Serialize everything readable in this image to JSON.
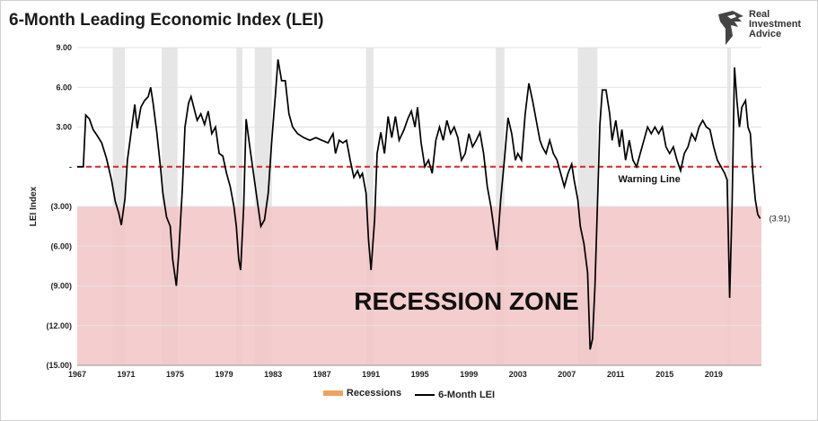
{
  "title": "6-Month Leading Economic Index (LEI)",
  "logo": {
    "line1": "Real",
    "line2": "Investment",
    "line3": "Advice"
  },
  "chart_data": {
    "type": "line",
    "ylabel": "LEI Index",
    "ylim": [
      -15,
      9
    ],
    "xlim": [
      1967,
      2022.9
    ],
    "y_ticks": [
      {
        "v": 9,
        "label": "9.00"
      },
      {
        "v": 6,
        "label": "6.00"
      },
      {
        "v": 3,
        "label": "3.00"
      },
      {
        "v": 0,
        "label": "-"
      },
      {
        "v": -3,
        "label": "(3.00)"
      },
      {
        "v": -6,
        "label": "(6.00)"
      },
      {
        "v": -9,
        "label": "(9.00)"
      },
      {
        "v": -12,
        "label": "(12.00)"
      },
      {
        "v": -15,
        "label": "(15.00)"
      }
    ],
    "x_ticks": [
      "1967",
      "1971",
      "1975",
      "1979",
      "1983",
      "1987",
      "1991",
      "1995",
      "1999",
      "2003",
      "2007",
      "2011",
      "2015",
      "2019"
    ],
    "grid": true,
    "recessions": [
      [
        1969.9,
        1970.9
      ],
      [
        1973.9,
        1975.2
      ],
      [
        1980.0,
        1980.5
      ],
      [
        1981.5,
        1982.9
      ],
      [
        1990.6,
        1991.2
      ],
      [
        2001.2,
        2001.9
      ],
      [
        2007.9,
        2009.5
      ],
      [
        2020.1,
        2020.4
      ]
    ],
    "warning_line": {
      "value": 0,
      "label": "Warning Line",
      "color": "#d62728"
    },
    "recession_zone": {
      "from": -3,
      "to": -15,
      "label": "RECESSION ZONE",
      "color": "#f2c4c6"
    },
    "series": [
      {
        "name": "6-Month LEI",
        "color": "#000000",
        "points": [
          [
            1967.0,
            0.0
          ],
          [
            1967.5,
            0.0
          ],
          [
            1967.7,
            3.9
          ],
          [
            1968.0,
            3.6
          ],
          [
            1968.3,
            2.8
          ],
          [
            1968.6,
            2.4
          ],
          [
            1969.0,
            1.8
          ],
          [
            1969.4,
            0.6
          ],
          [
            1969.8,
            -1.0
          ],
          [
            1970.1,
            -2.6
          ],
          [
            1970.4,
            -3.5
          ],
          [
            1970.6,
            -4.4
          ],
          [
            1970.9,
            -2.4
          ],
          [
            1971.1,
            0.5
          ],
          [
            1971.4,
            2.6
          ],
          [
            1971.7,
            4.7
          ],
          [
            1971.9,
            2.9
          ],
          [
            1972.2,
            4.5
          ],
          [
            1972.5,
            5.0
          ],
          [
            1972.8,
            5.3
          ],
          [
            1973.0,
            6.0
          ],
          [
            1973.2,
            4.8
          ],
          [
            1973.5,
            2.6
          ],
          [
            1973.8,
            0.0
          ],
          [
            1974.0,
            -2.0
          ],
          [
            1974.3,
            -3.8
          ],
          [
            1974.6,
            -4.5
          ],
          [
            1974.8,
            -7.0
          ],
          [
            1975.1,
            -9.0
          ],
          [
            1975.3,
            -6.5
          ],
          [
            1975.6,
            -1.5
          ],
          [
            1975.8,
            3.0
          ],
          [
            1976.1,
            4.8
          ],
          [
            1976.3,
            5.3
          ],
          [
            1976.6,
            4.2
          ],
          [
            1976.8,
            3.5
          ],
          [
            1977.1,
            4.0
          ],
          [
            1977.4,
            3.2
          ],
          [
            1977.7,
            4.2
          ],
          [
            1978.0,
            2.5
          ],
          [
            1978.3,
            3.0
          ],
          [
            1978.6,
            1.0
          ],
          [
            1978.9,
            0.8
          ],
          [
            1979.2,
            -0.5
          ],
          [
            1979.5,
            -1.5
          ],
          [
            1979.8,
            -3.0
          ],
          [
            1980.0,
            -4.5
          ],
          [
            1980.2,
            -7.0
          ],
          [
            1980.35,
            -7.8
          ],
          [
            1980.6,
            -3.0
          ],
          [
            1980.8,
            3.6
          ],
          [
            1981.1,
            1.5
          ],
          [
            1981.4,
            -0.5
          ],
          [
            1981.7,
            -2.5
          ],
          [
            1982.0,
            -4.5
          ],
          [
            1982.3,
            -4.0
          ],
          [
            1982.6,
            -2.0
          ],
          [
            1982.9,
            2.0
          ],
          [
            1983.2,
            5.5
          ],
          [
            1983.4,
            8.1
          ],
          [
            1983.7,
            6.5
          ],
          [
            1984.0,
            6.5
          ],
          [
            1984.3,
            4.0
          ],
          [
            1984.6,
            3.0
          ],
          [
            1985.0,
            2.5
          ],
          [
            1985.5,
            2.2
          ],
          [
            1986.0,
            2.0
          ],
          [
            1986.5,
            2.2
          ],
          [
            1987.0,
            2.0
          ],
          [
            1987.5,
            1.8
          ],
          [
            1987.9,
            2.5
          ],
          [
            1988.1,
            1.0
          ],
          [
            1988.4,
            2.0
          ],
          [
            1988.7,
            1.8
          ],
          [
            1989.0,
            2.0
          ],
          [
            1989.3,
            0.5
          ],
          [
            1989.6,
            -0.8
          ],
          [
            1989.9,
            -0.3
          ],
          [
            1990.1,
            -0.8
          ],
          [
            1990.3,
            -0.5
          ],
          [
            1990.6,
            -2.0
          ],
          [
            1990.8,
            -5.5
          ],
          [
            1991.0,
            -7.8
          ],
          [
            1991.3,
            -4.0
          ],
          [
            1991.5,
            1.0
          ],
          [
            1991.8,
            2.6
          ],
          [
            1992.1,
            1.0
          ],
          [
            1992.4,
            3.8
          ],
          [
            1992.7,
            2.2
          ],
          [
            1993.0,
            3.8
          ],
          [
            1993.3,
            2.0
          ],
          [
            1993.7,
            2.8
          ],
          [
            1994.0,
            3.6
          ],
          [
            1994.3,
            4.2
          ],
          [
            1994.6,
            3.0
          ],
          [
            1994.8,
            4.5
          ],
          [
            1995.1,
            1.8
          ],
          [
            1995.4,
            0.0
          ],
          [
            1995.7,
            0.5
          ],
          [
            1996.0,
            -0.5
          ],
          [
            1996.3,
            2.0
          ],
          [
            1996.6,
            3.0
          ],
          [
            1996.9,
            2.0
          ],
          [
            1997.2,
            3.5
          ],
          [
            1997.5,
            2.5
          ],
          [
            1997.8,
            3.0
          ],
          [
            1998.1,
            2.2
          ],
          [
            1998.4,
            0.5
          ],
          [
            1998.7,
            1.0
          ],
          [
            1999.0,
            2.5
          ],
          [
            1999.3,
            1.5
          ],
          [
            1999.6,
            2.0
          ],
          [
            1999.9,
            2.6
          ],
          [
            2000.2,
            1.0
          ],
          [
            2000.5,
            -1.5
          ],
          [
            2000.8,
            -3.0
          ],
          [
            2001.1,
            -5.0
          ],
          [
            2001.3,
            -6.3
          ],
          [
            2001.6,
            -2.5
          ],
          [
            2001.9,
            0.5
          ],
          [
            2002.2,
            3.7
          ],
          [
            2002.5,
            2.5
          ],
          [
            2002.8,
            0.5
          ],
          [
            2003.0,
            1.0
          ],
          [
            2003.3,
            0.5
          ],
          [
            2003.6,
            4.0
          ],
          [
            2003.9,
            6.3
          ],
          [
            2004.2,
            5.0
          ],
          [
            2004.5,
            3.5
          ],
          [
            2004.8,
            2.0
          ],
          [
            2005.0,
            1.5
          ],
          [
            2005.3,
            1.0
          ],
          [
            2005.6,
            2.0
          ],
          [
            2005.9,
            1.0
          ],
          [
            2006.2,
            0.5
          ],
          [
            2006.5,
            -0.5
          ],
          [
            2006.8,
            -1.5
          ],
          [
            2007.1,
            -0.5
          ],
          [
            2007.4,
            0.2
          ],
          [
            2007.6,
            -1.0
          ],
          [
            2007.9,
            -2.5
          ],
          [
            2008.1,
            -4.5
          ],
          [
            2008.4,
            -5.8
          ],
          [
            2008.7,
            -8.0
          ],
          [
            2008.9,
            -13.8
          ],
          [
            2009.1,
            -13.0
          ],
          [
            2009.3,
            -9.0
          ],
          [
            2009.5,
            -3.0
          ],
          [
            2009.7,
            3.2
          ],
          [
            2009.9,
            5.8
          ],
          [
            2010.2,
            5.8
          ],
          [
            2010.5,
            4.0
          ],
          [
            2010.7,
            2.0
          ],
          [
            2011.0,
            3.5
          ],
          [
            2011.3,
            1.5
          ],
          [
            2011.5,
            2.8
          ],
          [
            2011.8,
            0.5
          ],
          [
            2012.1,
            2.0
          ],
          [
            2012.4,
            0.5
          ],
          [
            2012.7,
            0.0
          ],
          [
            2013.0,
            1.0
          ],
          [
            2013.3,
            2.0
          ],
          [
            2013.6,
            3.0
          ],
          [
            2013.9,
            2.5
          ],
          [
            2014.2,
            3.0
          ],
          [
            2014.5,
            2.5
          ],
          [
            2014.8,
            3.0
          ],
          [
            2015.1,
            1.5
          ],
          [
            2015.4,
            1.0
          ],
          [
            2015.7,
            1.5
          ],
          [
            2016.0,
            0.5
          ],
          [
            2016.3,
            -0.3
          ],
          [
            2016.6,
            1.0
          ],
          [
            2016.9,
            1.5
          ],
          [
            2017.2,
            2.5
          ],
          [
            2017.5,
            2.0
          ],
          [
            2017.8,
            3.0
          ],
          [
            2018.1,
            3.5
          ],
          [
            2018.4,
            3.0
          ],
          [
            2018.7,
            2.8
          ],
          [
            2019.0,
            1.5
          ],
          [
            2019.3,
            0.5
          ],
          [
            2019.6,
            0.0
          ],
          [
            2019.9,
            -0.5
          ],
          [
            2020.1,
            -1.0
          ],
          [
            2020.3,
            -9.9
          ],
          [
            2020.5,
            -3.0
          ],
          [
            2020.7,
            7.5
          ],
          [
            2020.9,
            5.0
          ],
          [
            2021.1,
            3.0
          ],
          [
            2021.3,
            4.5
          ],
          [
            2021.6,
            5.0
          ],
          [
            2021.8,
            3.0
          ],
          [
            2022.0,
            2.5
          ],
          [
            2022.2,
            -0.5
          ],
          [
            2022.4,
            -2.5
          ],
          [
            2022.6,
            -3.6
          ],
          [
            2022.8,
            -3.91
          ]
        ]
      }
    ],
    "end_label": "(3.91)",
    "legend": [
      "Recessions",
      "6-Month LEI"
    ],
    "recession_color": "#f0a35e",
    "recession_band_color": "#e6e6e6"
  }
}
